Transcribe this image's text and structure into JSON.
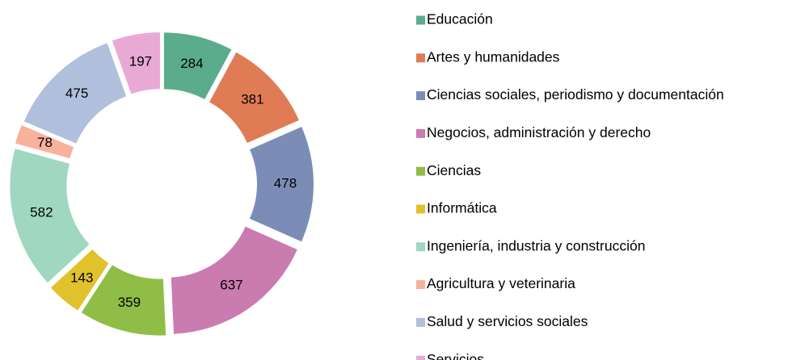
{
  "chart_data": {
    "type": "donut",
    "categories": [
      "Educación",
      "Artes y humanidades",
      "Ciencias sociales, periodismo y documentación",
      "Negocios, administración y derecho",
      "Ciencias",
      "Informática",
      "Ingeniería, industria y construcción",
      "Agricultura y veterinaria",
      "Salud y servicios sociales",
      "Servicios"
    ],
    "values": [
      284,
      381,
      478,
      637,
      359,
      143,
      582,
      78,
      475,
      197
    ],
    "colors": [
      "#5bac8c",
      "#e07c55",
      "#7b8db6",
      "#ca7bb0",
      "#8fbd46",
      "#e1c12c",
      "#9fd7c1",
      "#f8b19b",
      "#b0bfdc",
      "#e9a9d5"
    ],
    "legend": "right"
  }
}
